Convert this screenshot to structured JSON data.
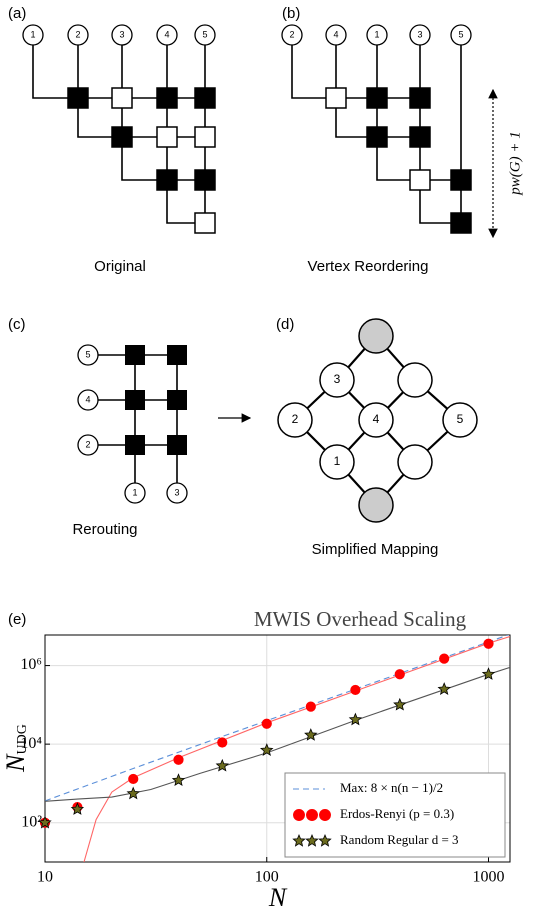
{
  "panels": {
    "a": {
      "label": "(a)",
      "caption": "Original",
      "nodes": [
        "1",
        "2",
        "3",
        "4",
        "5"
      ]
    },
    "b": {
      "label": "(b)",
      "caption": "Vertex Reordering",
      "nodes": [
        "2",
        "4",
        "1",
        "3",
        "5"
      ],
      "annotation": "pw(G) + 1"
    },
    "c": {
      "label": "(c)",
      "caption": "Rerouting",
      "nodes": [
        "5",
        "4",
        "2",
        "1",
        "3"
      ]
    },
    "d": {
      "label": "(d)",
      "caption": "Simplified Mapping",
      "nodes": [
        "3",
        "2",
        "4",
        "5",
        "1"
      ]
    },
    "e": {
      "label": "(e)"
    }
  },
  "chart_data": {
    "type": "line",
    "title": "MWIS Overhead Scaling",
    "x_label": "N",
    "y_label": "N",
    "y_label_sub": "UDG",
    "x_scale": "log",
    "y_scale": "log",
    "grid": true,
    "legend": "lower right",
    "xlim": [
      10,
      1250
    ],
    "xticks": [
      10,
      100,
      1000
    ],
    "ylim": [
      10,
      6000000
    ],
    "yticks": [
      {
        "value": 100,
        "label": "10²"
      },
      {
        "value": 10000,
        "label": "10⁴"
      },
      {
        "value": 1000000,
        "label": "10⁶"
      }
    ],
    "series": [
      {
        "name": "Max: 8 × n(n − 1)/2",
        "color": "#5b8fd9",
        "style": "dashed",
        "x": [
          10,
          25,
          63,
          158,
          398,
          1000,
          1250
        ],
        "values": [
          360,
          2400,
          15624,
          99224,
          632024,
          3996000,
          6245000
        ]
      },
      {
        "name": "Erdos-Renyi (p = 0.3)",
        "color": "#ff0000",
        "marker": "circle",
        "x": [
          10,
          14,
          25,
          40,
          63,
          100,
          158,
          251,
          398,
          631,
          1000
        ],
        "values": [
          100,
          250,
          1300,
          4000,
          11000,
          33000,
          90000,
          240000,
          600000,
          1500000,
          3600000
        ]
      },
      {
        "name": "Random Regular d = 3",
        "color": "#000000",
        "marker": "star",
        "x": [
          10,
          14,
          25,
          40,
          63,
          100,
          158,
          251,
          398,
          631,
          1000
        ],
        "values": [
          100,
          220,
          550,
          1200,
          2800,
          7000,
          17000,
          42000,
          100000,
          250000,
          600000
        ]
      },
      {
        "color": "#ff6666",
        "style": "solid",
        "x": [
          15,
          17,
          20,
          25,
          40,
          100,
          1000,
          1250
        ],
        "values": [
          10,
          120,
          600,
          1400,
          4500,
          35000,
          3700000,
          5500000
        ]
      },
      {
        "color": "#555555",
        "style": "solid",
        "x": [
          10,
          14,
          20,
          30,
          50,
          100,
          250,
          1000,
          1250
        ],
        "values": [
          350,
          400,
          450,
          700,
          1800,
          6000,
          40000,
          600000,
          900000
        ]
      }
    ]
  }
}
